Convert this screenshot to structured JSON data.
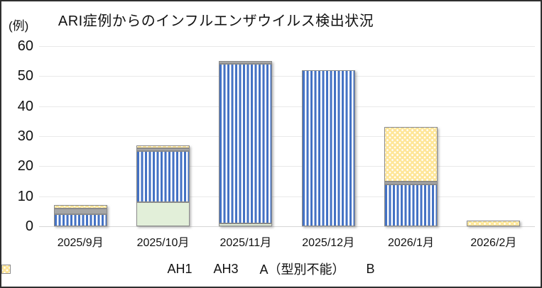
{
  "chart_data": {
    "type": "bar",
    "stacked": true,
    "title": "ARI症例からのインフルエンザウイルス検出状況",
    "unit_label": "(例)",
    "categories": [
      "2025/9月",
      "2025/10月",
      "2025/11月",
      "2025/12月",
      "2026/1月",
      "2026/2月"
    ],
    "series": [
      {
        "name": "AH1",
        "values": [
          0,
          8,
          1,
          0,
          0,
          0
        ],
        "color": "#e2efd9",
        "pattern": "solid"
      },
      {
        "name": "AH3",
        "values": [
          4,
          17,
          53,
          52,
          14,
          0
        ],
        "color": "#4472c4",
        "pattern": "vertical-stripes"
      },
      {
        "name": "A（型別不能）",
        "values": [
          2,
          1,
          1,
          0,
          1,
          0
        ],
        "color": "#a6a6a6",
        "pattern": "solid"
      },
      {
        "name": "B",
        "values": [
          1,
          1,
          0,
          0,
          18,
          2
        ],
        "color": "#ffe699",
        "pattern": "dots"
      }
    ],
    "ylim": [
      0,
      60
    ],
    "yticks": [
      0,
      10,
      20,
      30,
      40,
      50,
      60
    ],
    "grid": true,
    "legend_position": "bottom"
  }
}
